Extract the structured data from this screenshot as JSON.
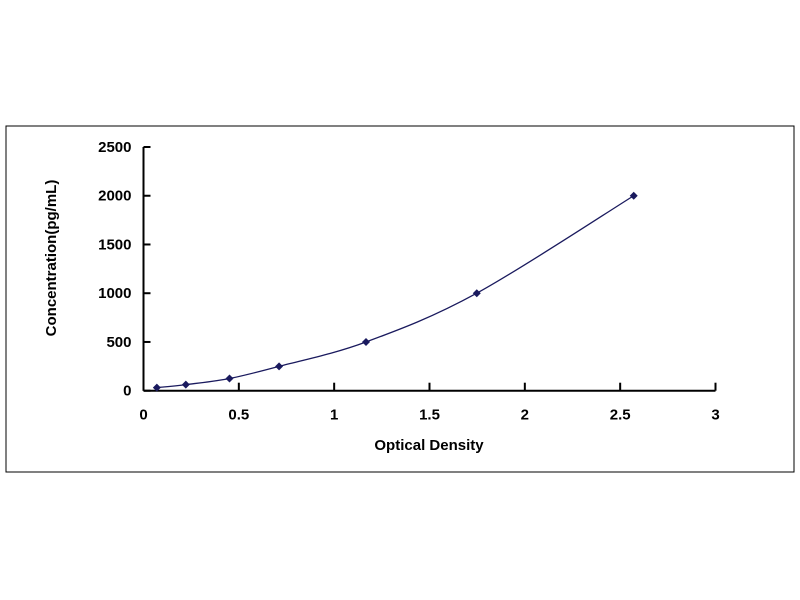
{
  "chart_data": {
    "type": "scatter",
    "title": "",
    "xlabel": "Optical Density",
    "ylabel": "Concentration(pg/mL)",
    "xlim": [
      0,
      3
    ],
    "ylim": [
      0,
      2500
    ],
    "xticks": [
      "0",
      "0.5",
      "1",
      "1.5",
      "2",
      "2.5",
      "3"
    ],
    "yticks": [
      "0",
      "500",
      "1000",
      "1500",
      "2000",
      "2500"
    ],
    "grid": false,
    "smooth_line": true,
    "marker": "diamond",
    "color": "#1a1a5e",
    "series": [
      {
        "x": [
          0.07,
          0.222,
          0.451,
          0.711,
          1.167,
          1.748,
          2.571
        ],
        "y": [
          31.25,
          62.5,
          125,
          250,
          500,
          1000,
          2000
        ]
      }
    ]
  }
}
